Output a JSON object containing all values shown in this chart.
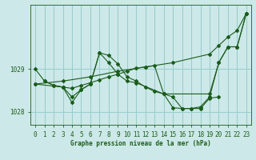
{
  "title": "Graphe pression niveau de la mer (hPa)",
  "background_color": "#cce8e8",
  "grid_color": "#99cccc",
  "line_color": "#1a5c1a",
  "xlim": [
    -0.5,
    23.5
  ],
  "ylim": [
    1027.7,
    1030.5
  ],
  "yticks": [
    1028,
    1029
  ],
  "xticks": [
    0,
    1,
    2,
    3,
    4,
    5,
    6,
    7,
    8,
    9,
    10,
    11,
    12,
    13,
    14,
    15,
    16,
    17,
    18,
    19,
    20,
    21,
    22,
    23
  ],
  "series": [
    {
      "x": [
        0,
        3,
        6,
        9,
        12,
        15,
        19,
        20,
        21,
        22,
        23
      ],
      "y": [
        1028.65,
        1028.72,
        1028.82,
        1028.95,
        1029.05,
        1029.15,
        1029.35,
        1029.55,
        1029.75,
        1029.9,
        1030.3
      ]
    },
    {
      "x": [
        0,
        1,
        2,
        3,
        4,
        5,
        6,
        7,
        8,
        9,
        10,
        11,
        12,
        13,
        14,
        19,
        20,
        21,
        22,
        23
      ],
      "y": [
        1029.0,
        1028.72,
        1028.62,
        1028.58,
        1028.35,
        1028.52,
        1028.65,
        1029.38,
        1029.32,
        1029.12,
        1028.82,
        1028.72,
        1028.58,
        1028.48,
        1028.42,
        1028.42,
        1029.15,
        1029.52,
        1029.52,
        1030.3
      ]
    },
    {
      "x": [
        1,
        2,
        3,
        4,
        5,
        6,
        7,
        8,
        9,
        10,
        11,
        14,
        15,
        16,
        17,
        18,
        19,
        20,
        21,
        22,
        23
      ],
      "y": [
        1028.72,
        1028.62,
        1028.58,
        1028.22,
        1028.52,
        1028.65,
        1029.38,
        1029.15,
        1028.88,
        1028.72,
        1028.68,
        1028.42,
        1028.1,
        1028.08,
        1028.08,
        1028.12,
        1028.35,
        1029.15,
        1029.52,
        1029.52,
        1030.3
      ]
    },
    {
      "x": [
        0,
        3,
        4,
        5,
        6,
        7,
        8,
        9,
        10,
        11,
        12,
        13,
        14,
        15,
        16,
        17,
        18,
        19,
        20
      ],
      "y": [
        1028.65,
        1028.58,
        1028.55,
        1028.62,
        1028.68,
        1028.75,
        1028.82,
        1028.88,
        1028.95,
        1029.02,
        1029.05,
        1029.08,
        1028.42,
        1028.35,
        1028.08,
        1028.08,
        1028.08,
        1028.32,
        1028.35
      ]
    }
  ]
}
